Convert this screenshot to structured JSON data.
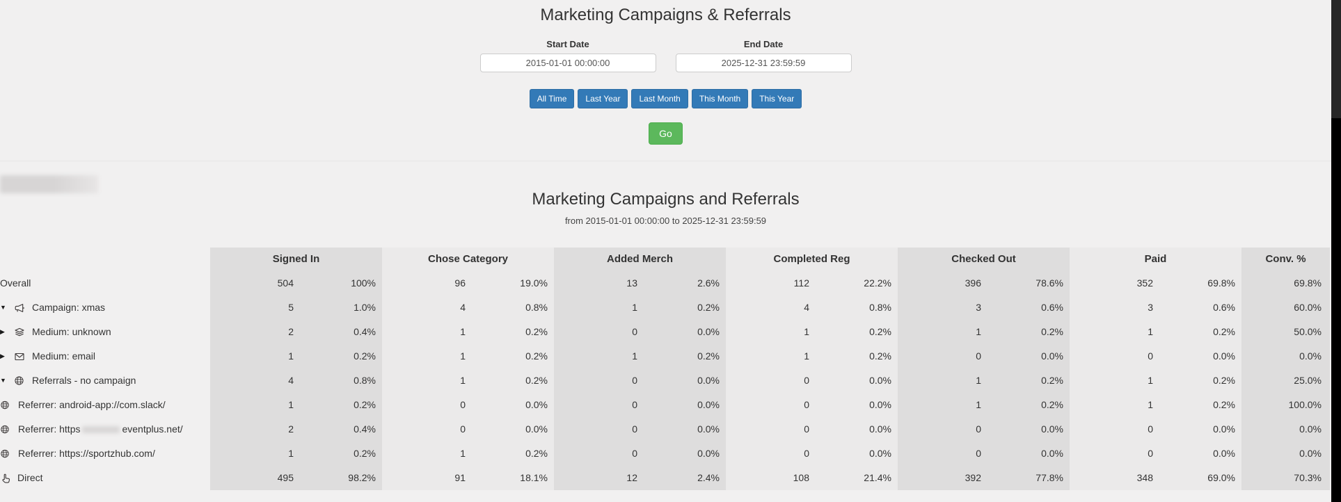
{
  "header": {
    "title": "Marketing Campaigns & Referrals",
    "start_date": {
      "label": "Start Date",
      "value": "2015-01-01 00:00:00"
    },
    "end_date": {
      "label": "End Date",
      "value": "2025-12-31 23:59:59"
    },
    "quick_ranges": [
      "All Time",
      "Last Year",
      "Last Month",
      "This Month",
      "This Year"
    ],
    "go_label": "Go",
    "colors": {
      "primary_button": "#337ab7",
      "go_button": "#5cb85c"
    }
  },
  "report": {
    "title": "Marketing Campaigns and Referrals",
    "subtitle": "from 2015-01-01 00:00:00 to 2025-12-31 23:59:59",
    "table": {
      "column_groups": [
        "Signed In",
        "Chose Category",
        "Added Merch",
        "Completed Reg",
        "Checked Out",
        "Paid",
        "Conv. %"
      ],
      "rows": [
        {
          "style": "overall",
          "arrow": null,
          "icon": null,
          "label": "Overall",
          "cells": [
            [
              "504",
              "100%"
            ],
            [
              "96",
              "19.0%"
            ],
            [
              "13",
              "2.6%"
            ],
            [
              "112",
              "22.2%"
            ],
            [
              "396",
              "78.6%"
            ],
            [
              "352",
              "69.8%"
            ]
          ],
          "conv": "69.8%"
        },
        {
          "style": "group",
          "arrow": "down",
          "icon": "bullhorn-icon",
          "label": "Campaign: xmas",
          "cells": [
            [
              "5",
              "1.0%"
            ],
            [
              "4",
              "0.8%"
            ],
            [
              "1",
              "0.2%"
            ],
            [
              "4",
              "0.8%"
            ],
            [
              "3",
              "0.6%"
            ],
            [
              "3",
              "0.6%"
            ]
          ],
          "conv": "60.0%"
        },
        {
          "style": "group",
          "arrow": "right",
          "icon": "layers-icon",
          "label": "Medium: unknown",
          "cells": [
            [
              "2",
              "0.4%"
            ],
            [
              "1",
              "0.2%"
            ],
            [
              "0",
              "0.0%"
            ],
            [
              "1",
              "0.2%"
            ],
            [
              "1",
              "0.2%"
            ],
            [
              "1",
              "0.2%"
            ]
          ],
          "conv": "50.0%"
        },
        {
          "style": "group",
          "arrow": "right",
          "icon": "envelope-icon",
          "label": "Medium: email",
          "cells": [
            [
              "1",
              "0.2%"
            ],
            [
              "1",
              "0.2%"
            ],
            [
              "1",
              "0.2%"
            ],
            [
              "1",
              "0.2%"
            ],
            [
              "0",
              "0.0%"
            ],
            [
              "0",
              "0.0%"
            ]
          ],
          "conv": "0.0%"
        },
        {
          "style": "group",
          "arrow": "down",
          "icon": "globe-icon",
          "label": "Referrals - no campaign",
          "cells": [
            [
              "4",
              "0.8%"
            ],
            [
              "1",
              "0.2%"
            ],
            [
              "0",
              "0.0%"
            ],
            [
              "0",
              "0.0%"
            ],
            [
              "1",
              "0.2%"
            ],
            [
              "1",
              "0.2%"
            ]
          ],
          "conv": "25.0%"
        },
        {
          "style": "sub",
          "arrow": null,
          "icon": "globe-icon",
          "label": "Referrer: android-app://com.slack/",
          "cells": [
            [
              "1",
              "0.2%"
            ],
            [
              "0",
              "0.0%"
            ],
            [
              "0",
              "0.0%"
            ],
            [
              "0",
              "0.0%"
            ],
            [
              "1",
              "0.2%"
            ],
            [
              "1",
              "0.2%"
            ]
          ],
          "conv": "100.0%"
        },
        {
          "style": "sub",
          "arrow": null,
          "icon": "globe-icon",
          "label_prefix": "Referrer: https",
          "redacted_mid": true,
          "label_suffix": "eventplus.net/",
          "cells": [
            [
              "2",
              "0.4%"
            ],
            [
              "0",
              "0.0%"
            ],
            [
              "0",
              "0.0%"
            ],
            [
              "0",
              "0.0%"
            ],
            [
              "0",
              "0.0%"
            ],
            [
              "0",
              "0.0%"
            ]
          ],
          "conv": "0.0%"
        },
        {
          "style": "sub",
          "arrow": null,
          "icon": "globe-icon",
          "label": "Referrer: https://sportzhub.com/",
          "cells": [
            [
              "1",
              "0.2%"
            ],
            [
              "1",
              "0.2%"
            ],
            [
              "0",
              "0.0%"
            ],
            [
              "0",
              "0.0%"
            ],
            [
              "0",
              "0.0%"
            ],
            [
              "0",
              "0.0%"
            ]
          ],
          "conv": "0.0%"
        },
        {
          "style": "direct",
          "arrow": null,
          "icon": "hand-pointer-icon",
          "label": "Direct",
          "cells": [
            [
              "495",
              "98.2%"
            ],
            [
              "91",
              "18.1%"
            ],
            [
              "12",
              "2.4%"
            ],
            [
              "108",
              "21.4%"
            ],
            [
              "392",
              "77.8%"
            ],
            [
              "348",
              "69.0%"
            ]
          ],
          "conv": "70.3%"
        }
      ]
    }
  }
}
